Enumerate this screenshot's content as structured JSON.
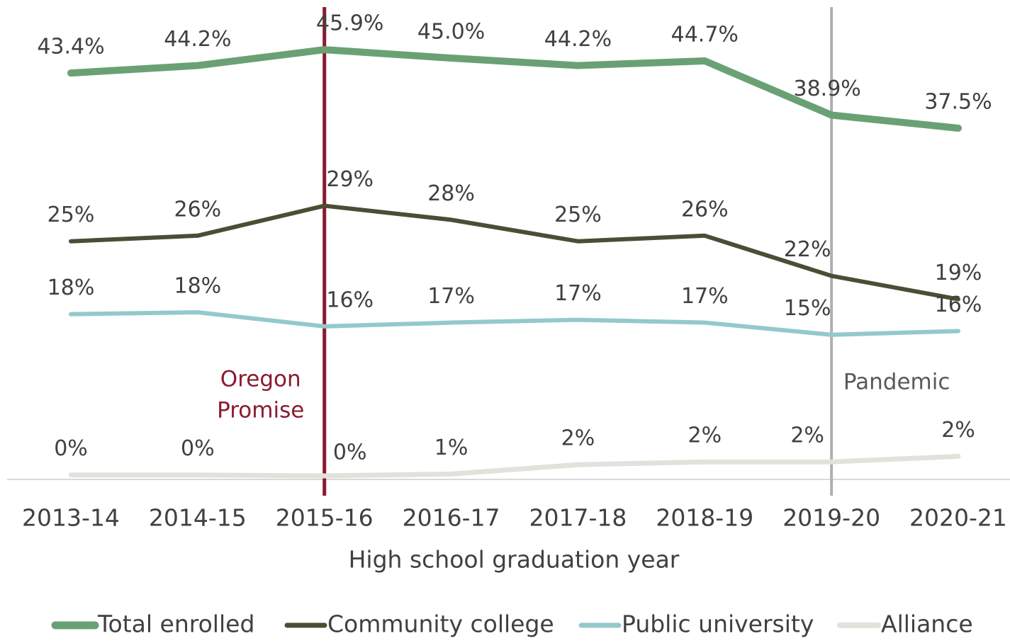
{
  "chart_data": {
    "type": "line",
    "categories": [
      "2013-14",
      "2014-15",
      "2015-16",
      "2016-17",
      "2017-18",
      "2018-19",
      "2019-20",
      "2020-21"
    ],
    "x_label": "High school graduation year",
    "ylim": [
      0,
      50
    ],
    "series": [
      {
        "name": "Total enrolled",
        "color": "#6aa174",
        "values": [
          43.4,
          44.2,
          45.9,
          45.0,
          44.2,
          44.7,
          38.9,
          37.5
        ],
        "value_labels": [
          "43.4%",
          "44.2%",
          "45.9%",
          "45.0%",
          "44.2%",
          "44.7%",
          "38.9%",
          "37.5%"
        ]
      },
      {
        "name": "Community college",
        "color": "#4d4d35",
        "values": [
          25.4,
          26.0,
          29.2,
          27.7,
          25.4,
          26.0,
          21.7,
          19.2
        ],
        "value_labels": [
          "25%",
          "26%",
          "29%",
          "28%",
          "25%",
          "26%",
          "22%",
          "19%"
        ]
      },
      {
        "name": "Public university",
        "color": "#94c9cc",
        "values": [
          17.6,
          17.8,
          16.3,
          16.7,
          17.0,
          16.7,
          15.4,
          15.8
        ],
        "value_labels": [
          "18%",
          "18%",
          "16%",
          "17%",
          "17%",
          "17%",
          "15%",
          "16%"
        ]
      },
      {
        "name": "Alliance",
        "color": "#e2e2dc",
        "values": [
          0.4,
          0.4,
          0.3,
          0.5,
          1.5,
          1.8,
          1.8,
          2.4
        ],
        "value_labels": [
          "0%",
          "0%",
          "0%",
          "1%",
          "2%",
          "2%",
          "2%",
          "2%"
        ]
      }
    ],
    "annotations": [
      {
        "lines": [
          "Oregon",
          "Promise"
        ],
        "x": "2015-16",
        "color": "#8b1a2e"
      },
      {
        "lines": [
          "Pandemic"
        ],
        "x": "2019-20",
        "color": "#b0b0b0"
      }
    ],
    "legend": "bottom"
  }
}
